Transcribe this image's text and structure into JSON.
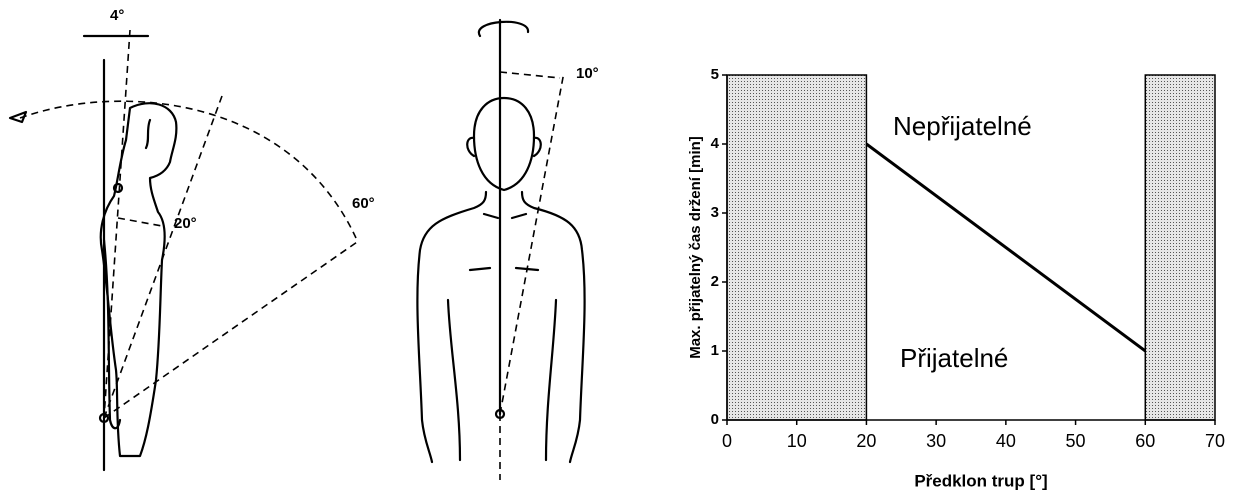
{
  "figures": {
    "side_view": {
      "angles": [
        "4°",
        "20°",
        "60°"
      ]
    },
    "front_view": {
      "angles": [
        "10°"
      ]
    }
  },
  "chart_data": {
    "type": "line",
    "x": [
      20,
      60
    ],
    "series": [
      {
        "color": "#000000",
        "values": [
          4,
          1
        ]
      }
    ],
    "shaded_regions": [
      [
        0,
        20
      ],
      [
        60,
        70
      ]
    ],
    "annotations": [
      "Nepřijatelné",
      "Přijatelné"
    ],
    "xlabel": "Předklon trup [°]",
    "ylabel": "Max. přijatelný čas držení [min]",
    "xlim": [
      0,
      70
    ],
    "xticks": [
      0,
      10,
      20,
      30,
      40,
      50,
      60,
      70
    ],
    "ylim": [
      0,
      5
    ],
    "yticks": [
      0,
      1,
      2,
      3,
      4,
      5
    ]
  }
}
